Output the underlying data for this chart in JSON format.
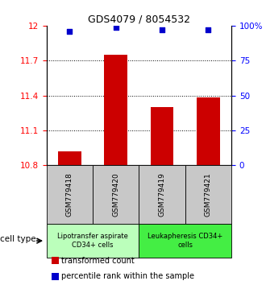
{
  "title": "GDS4079 / 8054532",
  "samples": [
    "GSM779418",
    "GSM779420",
    "GSM779419",
    "GSM779421"
  ],
  "bar_values": [
    10.92,
    11.75,
    11.3,
    11.385
  ],
  "percentile_values": [
    96,
    99,
    97,
    97
  ],
  "ylim_left": [
    10.8,
    12.0
  ],
  "ylim_right": [
    0,
    100
  ],
  "left_ticks": [
    10.8,
    11.1,
    11.4,
    11.7,
    12.0
  ],
  "right_ticks": [
    0,
    25,
    50,
    75,
    100
  ],
  "left_tick_labels": [
    "10.8",
    "11.1",
    "11.4",
    "11.7",
    "12"
  ],
  "right_tick_labels": [
    "0",
    "25",
    "50",
    "75",
    "100%"
  ],
  "bar_color": "#cc0000",
  "dot_color": "#0000cc",
  "cell_type_groups": [
    {
      "label": "Lipotransfer aspirate\nCD34+ cells",
      "color": "#bbffbb",
      "span": [
        0,
        2
      ]
    },
    {
      "label": "Leukapheresis CD34+\ncells",
      "color": "#44ee44",
      "span": [
        2,
        4
      ]
    }
  ],
  "cell_type_label": "cell type",
  "legend_items": [
    {
      "color": "#cc0000",
      "label": "transformed count"
    },
    {
      "color": "#0000cc",
      "label": "percentile rank within the sample"
    }
  ],
  "bar_width": 0.5,
  "sample_box_color": "#c8c8c8",
  "title_fontsize": 9,
  "axis_fontsize": 7.5,
  "sample_fontsize": 6.5,
  "cell_label_fontsize": 6.0,
  "legend_fontsize": 7.0
}
